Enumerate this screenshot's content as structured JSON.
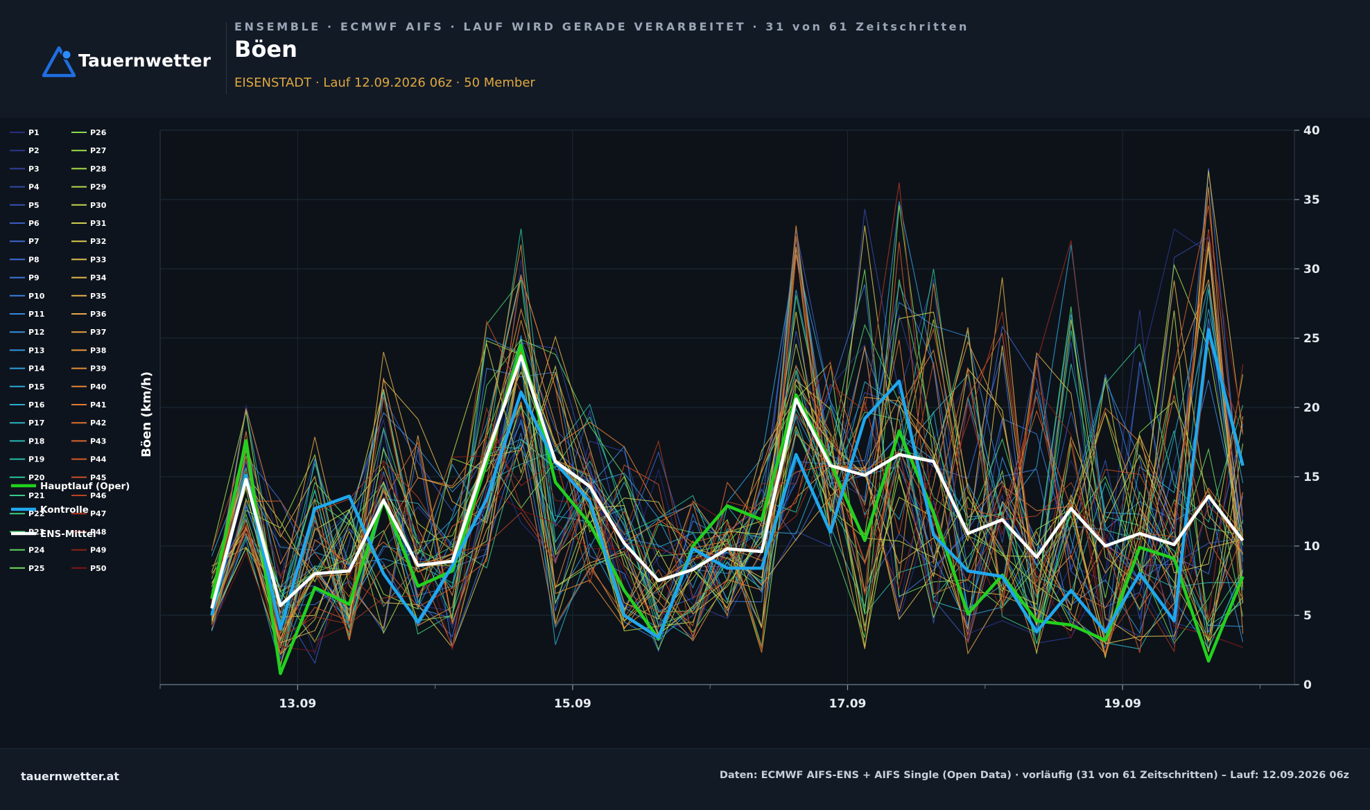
{
  "header": {
    "logo_text": "Tauernwetter",
    "kicker": "ENSEMBLE · ECMWF AIFS · LAUF WIRD GERADE VERARBEITET · 31 von 61 Zeitschritten",
    "title": "Böen",
    "subtitle": "EISENSTADT · Lauf 12.09.2026 06z · 50 Member"
  },
  "footer": {
    "site": "tauernwetter.at",
    "source": "Daten: ECMWF AIFS-ENS + AIFS Single (Open Data) · vorläufig (31 von 61 Zeitschritten) – Lauf: 12.09.2026 06z"
  },
  "colors": {
    "oper": "#22d11e",
    "control": "#1fa8ee",
    "mean": "#ffffff",
    "background": "#0e141d",
    "header": "#121a26",
    "subtitle": "#e0a83e"
  },
  "chart_data": {
    "type": "line",
    "ylabel": "Böen (km/h)",
    "ylim": [
      0,
      40
    ],
    "yticks": [
      0,
      5,
      10,
      15,
      20,
      25,
      30,
      35,
      40
    ],
    "y_axis_side": "right",
    "xlim": [
      "2026-09-12T00:00",
      "2026-09-20T06:00"
    ],
    "xticks": [
      "13.09",
      "15.09",
      "17.09",
      "19.09"
    ],
    "grid": true,
    "legend_position": "left",
    "x": [
      "2026-09-12T09:00",
      "2026-09-12T15:00",
      "2026-09-12T21:00",
      "2026-09-13T03:00",
      "2026-09-13T09:00",
      "2026-09-13T15:00",
      "2026-09-13T21:00",
      "2026-09-14T03:00",
      "2026-09-14T09:00",
      "2026-09-14T15:00",
      "2026-09-14T21:00",
      "2026-09-15T03:00",
      "2026-09-15T09:00",
      "2026-09-15T15:00",
      "2026-09-15T21:00",
      "2026-09-16T03:00",
      "2026-09-16T09:00",
      "2026-09-16T15:00",
      "2026-09-16T21:00",
      "2026-09-17T03:00",
      "2026-09-17T09:00",
      "2026-09-17T15:00",
      "2026-09-17T21:00",
      "2026-09-18T03:00",
      "2026-09-18T09:00",
      "2026-09-18T15:00",
      "2026-09-18T21:00",
      "2026-09-19T03:00",
      "2026-09-19T09:00",
      "2026-09-19T15:00",
      "2026-09-19T21:00"
    ],
    "highlight_series": [
      {
        "name": "Hauptlauf (Oper)",
        "role": "oper",
        "color": "#22d11e",
        "values": [
          6.2,
          17.6,
          0.8,
          7.0,
          5.8,
          13.3,
          7.1,
          8.2,
          16.0,
          24.5,
          14.6,
          11.6,
          6.8,
          3.3,
          10.0,
          12.9,
          11.9,
          20.9,
          16.0,
          10.4,
          18.3,
          12.4,
          5.1,
          7.9,
          4.6,
          4.3,
          3.2,
          9.9,
          9.1,
          1.7,
          7.8
        ]
      },
      {
        "name": "Kontrolle",
        "role": "control",
        "color": "#1fa8ee",
        "values": [
          5.0,
          15.1,
          4.0,
          12.7,
          13.6,
          8.0,
          4.5,
          8.6,
          13.4,
          21.1,
          16.0,
          13.2,
          5.0,
          3.4,
          9.8,
          8.4,
          8.4,
          16.6,
          11.0,
          19.2,
          21.9,
          10.8,
          8.2,
          7.8,
          3.8,
          6.8,
          3.8,
          8.0,
          4.6,
          25.6,
          15.8
        ]
      },
      {
        "name": "ENS-Mittel",
        "role": "mean",
        "color": "#ffffff",
        "values": [
          5.5,
          14.8,
          5.7,
          8.0,
          8.2,
          13.3,
          8.6,
          8.9,
          16.5,
          23.7,
          16.1,
          14.3,
          10.2,
          7.5,
          8.3,
          9.8,
          9.6,
          20.6,
          15.8,
          15.1,
          16.6,
          16.1,
          10.9,
          11.9,
          9.2,
          12.7,
          10.0,
          10.9,
          10.1,
          13.6,
          10.4
        ]
      }
    ],
    "members": {
      "names": [
        "P1",
        "P2",
        "P3",
        "P4",
        "P5",
        "P6",
        "P7",
        "P8",
        "P9",
        "P10",
        "P11",
        "P12",
        "P13",
        "P14",
        "P15",
        "P16",
        "P17",
        "P18",
        "P19",
        "P20",
        "P21",
        "P22",
        "P23",
        "P24",
        "P25",
        "P26",
        "P27",
        "P28",
        "P29",
        "P30",
        "P31",
        "P32",
        "P33",
        "P34",
        "P35",
        "P36",
        "P37",
        "P38",
        "P39",
        "P40",
        "P41",
        "P42",
        "P43",
        "P44",
        "P45",
        "P46",
        "P47",
        "P48",
        "P49",
        "P50"
      ],
      "envelope_min": [
        3.5,
        8.5,
        0.7,
        0.7,
        2.5,
        2.5,
        2.8,
        1.1,
        7.0,
        9.7,
        1.0,
        6.5,
        2.3,
        1.8,
        2.5,
        3.5,
        1.2,
        8.8,
        9.0,
        0.6,
        2.5,
        3.0,
        0.9,
        2.5,
        1.4,
        2.2,
        1.0,
        0.9,
        1.5,
        0.3,
        1.3
      ],
      "envelope_max": [
        10.2,
        20.5,
        14.3,
        18.4,
        14.5,
        25.8,
        19.9,
        18.0,
        29.2,
        34.0,
        26.0,
        21.3,
        20.4,
        18.6,
        14.6,
        15.6,
        17.3,
        33.9,
        23.8,
        35.7,
        37.6,
        33.4,
        26.9,
        30.9,
        27.0,
        35.5,
        24.3,
        28.8,
        34.2,
        38.6,
        24.6
      ]
    }
  }
}
